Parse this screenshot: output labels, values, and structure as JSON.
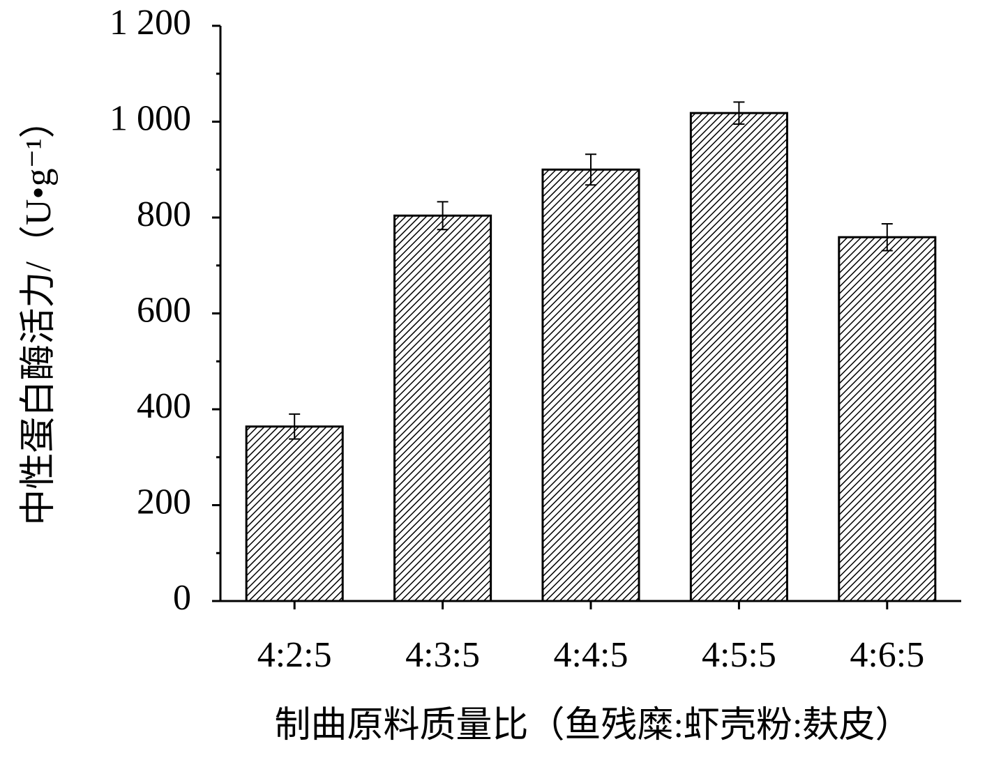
{
  "chart_data": {
    "type": "bar",
    "xlabel": "制曲原料质量比（鱼残糜:虾壳粉:麸皮）",
    "ylabel": "中性蛋白酶活力/（U•g⁻¹）",
    "categories": [
      "4:2:5",
      "4:3:5",
      "4:4:5",
      "4:5:5",
      "4:6:5"
    ],
    "values": [
      364,
      804,
      900,
      1018,
      759
    ],
    "errors": [
      26,
      29,
      32,
      23,
      28
    ],
    "color": "#000000",
    "hatch": true,
    "ylim": [
      0,
      1200
    ],
    "yticks": [
      0,
      200,
      400,
      600,
      800,
      {
        "value": 1000,
        "label": "1 000"
      },
      {
        "value": 1200,
        "label": "1 200"
      }
    ],
    "minor_yticks": [
      100,
      300,
      500,
      700,
      900,
      1100
    ]
  }
}
